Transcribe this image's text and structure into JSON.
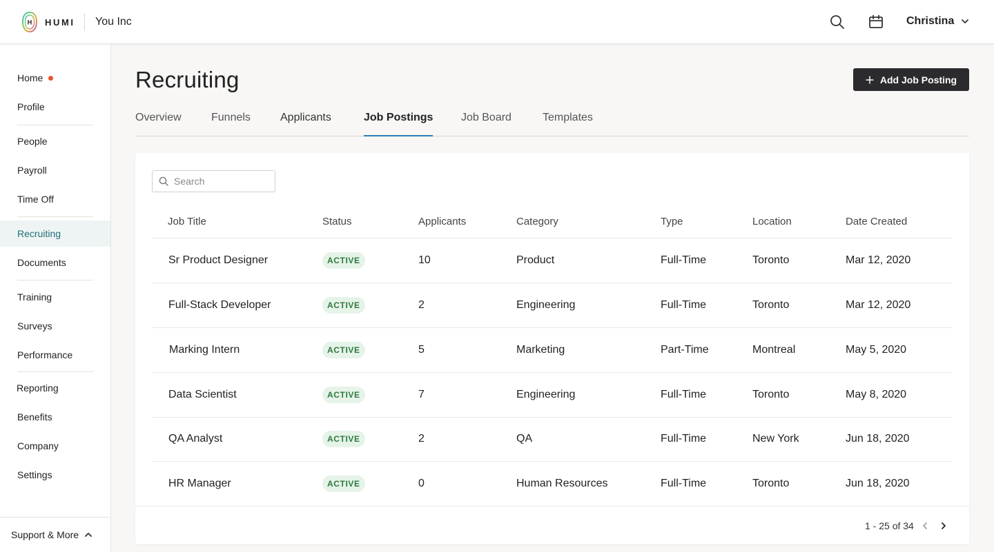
{
  "header": {
    "logo_text": "HUMI",
    "company": "You Inc",
    "user_name": "Christina",
    "icons": {
      "search": "search-icon",
      "calendar": "calendar-icon",
      "chevron": "chevron-down-icon"
    }
  },
  "sidebar": {
    "items": [
      {
        "label": "Home",
        "notification": true
      },
      {
        "label": "Profile"
      },
      {
        "label": "People"
      },
      {
        "label": "Payroll"
      },
      {
        "label": "Time Off"
      },
      {
        "label": "Recruiting",
        "active": true
      },
      {
        "label": "Documents"
      },
      {
        "label": "Training"
      },
      {
        "label": "Surveys"
      },
      {
        "label": "Performance"
      },
      {
        "label": "Reporting"
      },
      {
        "label": "Benefits"
      },
      {
        "label": "Company"
      },
      {
        "label": "Settings"
      }
    ],
    "support_label": "Support & More"
  },
  "page": {
    "title": "Recruiting",
    "add_button_label": "Add Job Posting",
    "tabs": [
      {
        "label": "Overview"
      },
      {
        "label": "Funnels"
      },
      {
        "label": "Applicants"
      },
      {
        "label": "Job Postings",
        "active": true
      },
      {
        "label": "Job Board"
      },
      {
        "label": "Templates"
      }
    ]
  },
  "table": {
    "search_placeholder": "Search",
    "columns": [
      "Job Title",
      "Status",
      "Applicants",
      "Category",
      "Type",
      "Location",
      "Date Created"
    ],
    "rows": [
      {
        "title": "Sr Product Designer",
        "status": "ACTIVE",
        "applicants": "10",
        "category": "Product",
        "type": "Full-Time",
        "location": "Toronto",
        "date": "Mar 12, 2020"
      },
      {
        "title": "Full-Stack Developer",
        "status": "ACTIVE",
        "applicants": "2",
        "category": "Engineering",
        "type": "Full-Time",
        "location": "Toronto",
        "date": "Mar 12, 2020"
      },
      {
        "title": "Marking Intern",
        "status": "ACTIVE",
        "applicants": "5",
        "category": "Marketing",
        "type": "Part-Time",
        "location": "Montreal",
        "date": "May 5, 2020"
      },
      {
        "title": "Data Scientist",
        "status": "ACTIVE",
        "applicants": "7",
        "category": "Engineering",
        "type": "Full-Time",
        "location": "Toronto",
        "date": "May 8, 2020"
      },
      {
        "title": "QA Analyst",
        "status": "ACTIVE",
        "applicants": "2",
        "category": "QA",
        "type": "Full-Time",
        "location": "New York",
        "date": "Jun 18, 2020"
      },
      {
        "title": "HR Manager",
        "status": "ACTIVE",
        "applicants": "0",
        "category": "Human Resources",
        "type": "Full-Time",
        "location": "Toronto",
        "date": "Jun 18, 2020"
      }
    ],
    "pagination": "1 - 25 of 34"
  },
  "colors": {
    "accent_nav": "#1f6f78",
    "tab_underline": "#2a7bb3",
    "badge_bg": "#e5f3e8",
    "badge_text": "#2e7a3f",
    "notification_dot": "#e8552a",
    "primary_button": "#2b2b2d"
  }
}
